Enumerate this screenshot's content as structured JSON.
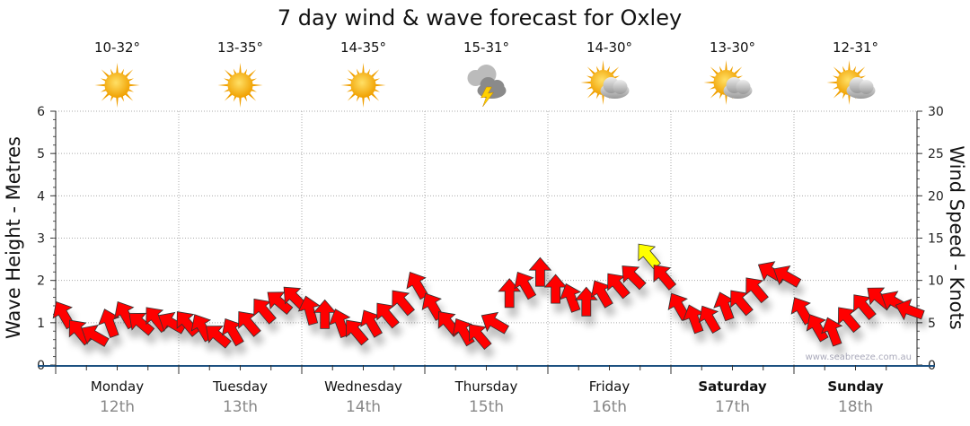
{
  "chart_data": {
    "type": "scatter",
    "title": "7 day wind & wave forecast for Oxley",
    "ylabel": "Wave Height - Metres",
    "y2label": "Wind Speed - Knots",
    "ylim": [
      0,
      6
    ],
    "y2lim": [
      0,
      30
    ],
    "yticks": [
      "0",
      "1",
      "2",
      "3",
      "4",
      "5",
      "6"
    ],
    "y2ticks": [
      "0",
      "5",
      "10",
      "15",
      "20",
      "25",
      "30"
    ],
    "grid": true,
    "watermark": "www.seabreeze.com.au",
    "days": [
      {
        "name": "Monday",
        "date": "12th",
        "temp": "10-32°",
        "weather": "sunny",
        "bold": false
      },
      {
        "name": "Tuesday",
        "date": "13th",
        "temp": "13-35°",
        "weather": "sunny",
        "bold": false
      },
      {
        "name": "Wednesday",
        "date": "14th",
        "temp": "14-35°",
        "weather": "sunny",
        "bold": false
      },
      {
        "name": "Thursday",
        "date": "15th",
        "temp": "15-31°",
        "weather": "storm",
        "bold": false
      },
      {
        "name": "Friday",
        "date": "16th",
        "temp": "14-30°",
        "weather": "partly-cloudy",
        "bold": false
      },
      {
        "name": "Saturday",
        "date": "17th",
        "temp": "13-30°",
        "weather": "partly-cloudy",
        "bold": true
      },
      {
        "name": "Sunday",
        "date": "18th",
        "temp": "12-31°",
        "weather": "partly-cloudy",
        "bold": true
      }
    ],
    "wind_series": {
      "name": "Wind (knots, arrow points downwind)",
      "interval_hours": 3,
      "speed_knots": [
        6,
        4,
        3.5,
        5,
        6,
        5,
        5.5,
        5,
        5,
        4.5,
        3.5,
        4,
        5,
        6.5,
        7.5,
        8,
        6.5,
        6,
        5,
        4,
        5,
        6,
        7.5,
        9.5,
        7,
        5,
        4,
        3.5,
        5,
        8.5,
        9.5,
        11,
        9,
        8,
        7.5,
        8.5,
        9.5,
        10.5,
        13,
        10.5,
        7,
        5.5,
        5.5,
        7,
        7.5,
        9,
        11,
        10.5,
        6.5,
        4.5,
        4,
        5.5,
        7,
        8,
        7.5,
        6.5
      ],
      "arrow_heading_deg": [
        330,
        320,
        300,
        340,
        330,
        310,
        320,
        300,
        320,
        330,
        310,
        330,
        320,
        320,
        310,
        315,
        345,
        0,
        340,
        320,
        330,
        320,
        320,
        330,
        330,
        320,
        330,
        320,
        300,
        0,
        330,
        0,
        0,
        340,
        0,
        330,
        320,
        315,
        320,
        320,
        330,
        340,
        330,
        340,
        320,
        320,
        300,
        300,
        330,
        330,
        340,
        320,
        320,
        310,
        300,
        290
      ],
      "highlight_index": 38,
      "color": "#ff0000",
      "highlight_color": "#ffff00"
    }
  }
}
